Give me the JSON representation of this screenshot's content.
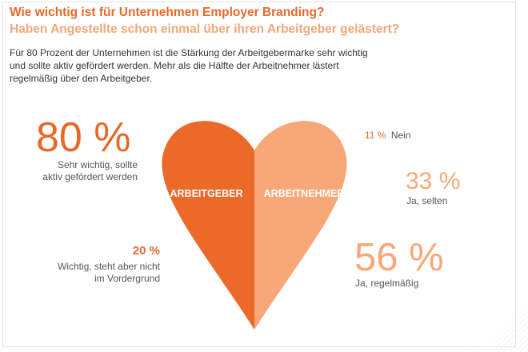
{
  "chart_data": {
    "type": "pie",
    "title": "Wie wichtig ist für Unternehmen Employer Branding?",
    "subtitle": "Haben Angestellte schon einmal über ihren Arbeitgeber gelästert?",
    "description": "Für 80 Prozent der Unternehmen ist die Stärkung der Arbeitgebermarke sehr wichtig und sollte aktiv gefördert werden. Mehr als die Hälfte der Arbeitnehmer lästert regelmäßig über den Arbeitgeber.",
    "groups": [
      {
        "name": "ARBEITGEBER",
        "color": "#eb6a2a",
        "items": [
          {
            "value": 80,
            "label": "80 %",
            "caption": "Sehr wichtig, sollte aktiv gefördert werden"
          },
          {
            "value": 20,
            "label": "20 %",
            "caption": "Wichtig, steht aber nicht im Vordergrund"
          }
        ]
      },
      {
        "name": "ARBEITNEHMER",
        "color": "#f8a878",
        "items": [
          {
            "value": 11,
            "label": "11 %",
            "caption": "Nein"
          },
          {
            "value": 33,
            "label": "33 %",
            "caption": "Ja, selten"
          },
          {
            "value": 56,
            "label": "56 %",
            "caption": "Ja, regelmäßig"
          }
        ]
      }
    ]
  }
}
